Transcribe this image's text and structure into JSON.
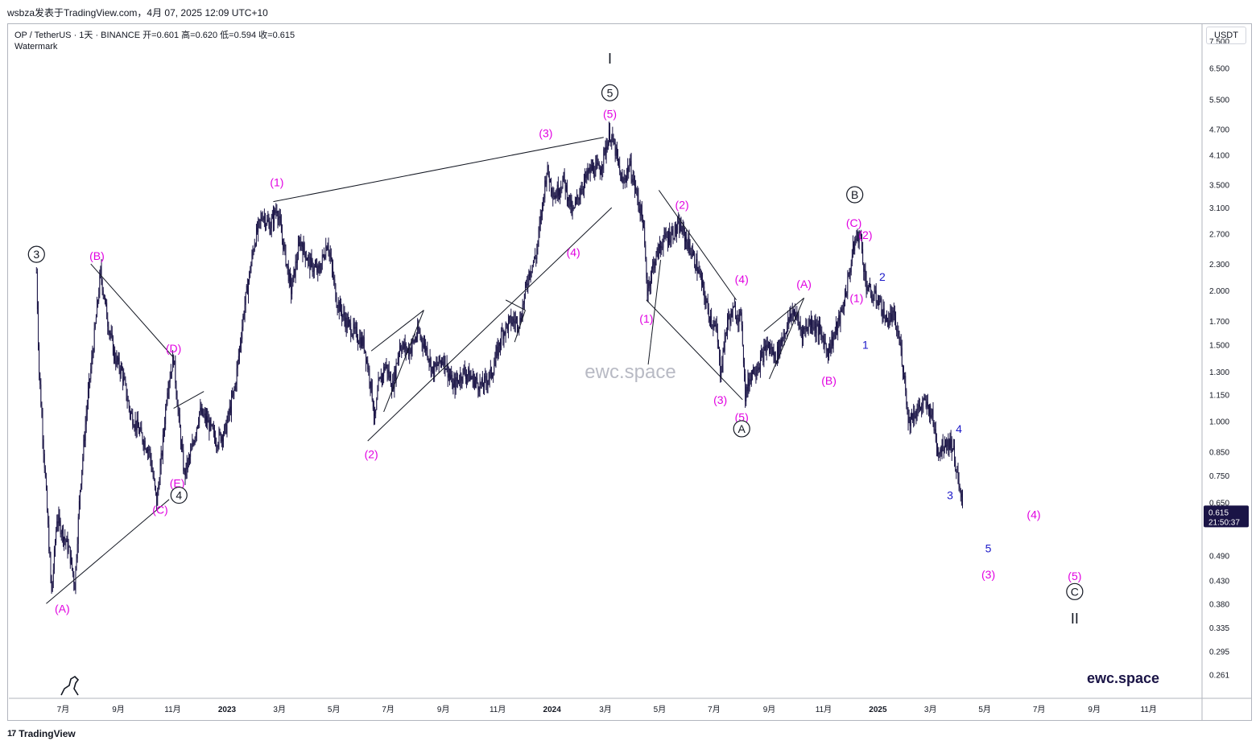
{
  "header": {
    "published": "wsbza发表于TradingView.com，4月 07, 2025 12:09 UTC+10",
    "symbol_line": "OP / TetherUS · 1天 · BINANCE  开=0.601  高=0.620  低=0.594  收=0.615",
    "watermark_label": "Watermark"
  },
  "price_axis": {
    "unit": "USDT",
    "current_price": "0.615",
    "countdown": "21:50:37",
    "current_color": "#1a1446"
  },
  "brand": {
    "center_watermark": "ewc.space",
    "corner_watermark": "ewc.space",
    "footer": "TradingView",
    "corner_color": "#1a1446"
  },
  "colors": {
    "candles": "#1a1446",
    "magenta": "#e100e1",
    "blue": "#1c19c8",
    "lines": "#131722"
  },
  "chart_data": {
    "type": "candlestick",
    "yscale": "log",
    "xlim": [
      "2022-05-01",
      "2025-12-31"
    ],
    "ylim": [
      0.23,
      8.2
    ],
    "y_ticks": [
      "7.500",
      "6.500",
      "5.500",
      "4.700",
      "4.100",
      "3.500",
      "3.100",
      "2.700",
      "2.300",
      "2.000",
      "1.700",
      "1.500",
      "1.300",
      "1.150",
      "1.000",
      "0.850",
      "0.750",
      "0.650",
      "0.490",
      "0.430",
      "0.380",
      "0.335",
      "0.295",
      "0.261"
    ],
    "x_ticks": [
      {
        "d": "2022-07-01",
        "l": "7月"
      },
      {
        "d": "2022-09-01",
        "l": "9月"
      },
      {
        "d": "2022-11-01",
        "l": "11月"
      },
      {
        "d": "2023-01-01",
        "l": "2023",
        "bold": true
      },
      {
        "d": "2023-03-01",
        "l": "3月"
      },
      {
        "d": "2023-05-01",
        "l": "5月"
      },
      {
        "d": "2023-07-01",
        "l": "7月"
      },
      {
        "d": "2023-09-01",
        "l": "9月"
      },
      {
        "d": "2023-11-01",
        "l": "11月"
      },
      {
        "d": "2024-01-01",
        "l": "2024",
        "bold": true
      },
      {
        "d": "2024-03-01",
        "l": "3月"
      },
      {
        "d": "2024-05-01",
        "l": "5月"
      },
      {
        "d": "2024-07-01",
        "l": "7月"
      },
      {
        "d": "2024-09-01",
        "l": "9月"
      },
      {
        "d": "2024-11-01",
        "l": "11月"
      },
      {
        "d": "2025-01-01",
        "l": "2025",
        "bold": true
      },
      {
        "d": "2025-03-01",
        "l": "3月"
      },
      {
        "d": "2025-05-01",
        "l": "5月"
      },
      {
        "d": "2025-07-01",
        "l": "7月"
      },
      {
        "d": "2025-09-01",
        "l": "9月"
      },
      {
        "d": "2025-11-01",
        "l": "11月"
      }
    ],
    "price_path": [
      [
        "2022-06-01",
        2.2
      ],
      [
        "2022-06-04",
        1.3
      ],
      [
        "2022-06-10",
        0.8
      ],
      [
        "2022-06-18",
        0.4
      ],
      [
        "2022-06-24",
        0.6
      ],
      [
        "2022-07-01",
        0.55
      ],
      [
        "2022-07-08",
        0.5
      ],
      [
        "2022-07-14",
        0.42
      ],
      [
        "2022-07-20",
        0.7
      ],
      [
        "2022-07-28",
        1.1
      ],
      [
        "2022-08-04",
        1.5
      ],
      [
        "2022-08-12",
        2.2
      ],
      [
        "2022-08-20",
        1.7
      ],
      [
        "2022-08-28",
        1.4
      ],
      [
        "2022-09-05",
        1.3
      ],
      [
        "2022-09-14",
        1.05
      ],
      [
        "2022-09-24",
        0.95
      ],
      [
        "2022-10-06",
        0.85
      ],
      [
        "2022-10-14",
        0.65
      ],
      [
        "2022-10-20",
        0.85
      ],
      [
        "2022-10-26",
        1.2
      ],
      [
        "2022-11-02",
        1.4
      ],
      [
        "2022-11-08",
        1.0
      ],
      [
        "2022-11-14",
        0.75
      ],
      [
        "2022-11-22",
        0.85
      ],
      [
        "2022-12-01",
        1.05
      ],
      [
        "2022-12-10",
        1.0
      ],
      [
        "2022-12-20",
        0.9
      ],
      [
        "2022-12-30",
        0.95
      ],
      [
        "2023-01-10",
        1.2
      ],
      [
        "2023-01-20",
        1.8
      ],
      [
        "2023-02-01",
        2.6
      ],
      [
        "2023-02-10",
        3.0
      ],
      [
        "2023-02-18",
        2.8
      ],
      [
        "2023-02-26",
        3.1
      ],
      [
        "2023-03-06",
        2.5
      ],
      [
        "2023-03-14",
        2.0
      ],
      [
        "2023-03-24",
        2.6
      ],
      [
        "2023-04-04",
        2.3
      ],
      [
        "2023-04-14",
        2.2
      ],
      [
        "2023-04-24",
        2.6
      ],
      [
        "2023-05-04",
        1.9
      ],
      [
        "2023-05-14",
        1.7
      ],
      [
        "2023-05-24",
        1.6
      ],
      [
        "2023-06-04",
        1.5
      ],
      [
        "2023-06-12",
        1.2
      ],
      [
        "2023-06-16",
        1.0
      ],
      [
        "2023-06-20",
        1.2
      ],
      [
        "2023-06-28",
        1.35
      ],
      [
        "2023-07-06",
        1.2
      ],
      [
        "2023-07-14",
        1.5
      ],
      [
        "2023-07-24",
        1.45
      ],
      [
        "2023-08-04",
        1.6
      ],
      [
        "2023-08-14",
        1.45
      ],
      [
        "2023-08-20",
        1.3
      ],
      [
        "2023-09-01",
        1.4
      ],
      [
        "2023-09-12",
        1.2
      ],
      [
        "2023-09-24",
        1.3
      ],
      [
        "2023-10-04",
        1.25
      ],
      [
        "2023-10-14",
        1.2
      ],
      [
        "2023-10-26",
        1.3
      ],
      [
        "2023-11-06",
        1.6
      ],
      [
        "2023-11-16",
        1.7
      ],
      [
        "2023-11-26",
        1.7
      ],
      [
        "2023-12-06",
        2.2
      ],
      [
        "2023-12-14",
        2.4
      ],
      [
        "2023-12-20",
        3.0
      ],
      [
        "2023-12-26",
        3.8
      ],
      [
        "2024-01-04",
        3.3
      ],
      [
        "2024-01-14",
        3.6
      ],
      [
        "2024-01-24",
        3.0
      ],
      [
        "2024-02-04",
        3.5
      ],
      [
        "2024-02-14",
        3.8
      ],
      [
        "2024-02-24",
        3.8
      ],
      [
        "2024-03-02",
        4.3
      ],
      [
        "2024-03-06",
        4.6
      ],
      [
        "2024-03-12",
        4.2
      ],
      [
        "2024-03-20",
        3.5
      ],
      [
        "2024-03-28",
        3.9
      ],
      [
        "2024-04-04",
        3.4
      ],
      [
        "2024-04-12",
        2.9
      ],
      [
        "2024-04-17",
        2.0
      ],
      [
        "2024-04-24",
        2.3
      ],
      [
        "2024-05-04",
        2.6
      ],
      [
        "2024-05-14",
        2.7
      ],
      [
        "2024-05-24",
        2.8
      ],
      [
        "2024-06-04",
        2.5
      ],
      [
        "2024-06-14",
        2.2
      ],
      [
        "2024-06-24",
        1.8
      ],
      [
        "2024-07-04",
        1.6
      ],
      [
        "2024-07-08",
        1.3
      ],
      [
        "2024-07-16",
        1.7
      ],
      [
        "2024-07-24",
        1.8
      ],
      [
        "2024-08-01",
        1.7
      ],
      [
        "2024-08-05",
        1.15
      ],
      [
        "2024-08-12",
        1.3
      ],
      [
        "2024-08-20",
        1.35
      ],
      [
        "2024-08-30",
        1.5
      ],
      [
        "2024-09-08",
        1.4
      ],
      [
        "2024-09-18",
        1.6
      ],
      [
        "2024-09-28",
        1.8
      ],
      [
        "2024-10-08",
        1.6
      ],
      [
        "2024-10-18",
        1.7
      ],
      [
        "2024-10-28",
        1.6
      ],
      [
        "2024-11-06",
        1.45
      ],
      [
        "2024-11-14",
        1.6
      ],
      [
        "2024-11-22",
        1.8
      ],
      [
        "2024-11-30",
        2.2
      ],
      [
        "2024-12-06",
        2.6
      ],
      [
        "2024-12-12",
        2.7
      ],
      [
        "2024-12-18",
        2.1
      ],
      [
        "2024-12-24",
        1.95
      ],
      [
        "2025-01-02",
        1.9
      ],
      [
        "2025-01-10",
        1.7
      ],
      [
        "2025-01-18",
        1.75
      ],
      [
        "2025-01-26",
        1.5
      ],
      [
        "2025-02-01",
        1.2
      ],
      [
        "2025-02-04",
        1.0
      ],
      [
        "2025-02-12",
        1.05
      ],
      [
        "2025-02-22",
        1.1
      ],
      [
        "2025-03-02",
        1.05
      ],
      [
        "2025-03-10",
        0.85
      ],
      [
        "2025-03-18",
        0.9
      ],
      [
        "2025-03-26",
        0.88
      ],
      [
        "2025-04-01",
        0.72
      ],
      [
        "2025-04-07",
        0.615
      ]
    ],
    "trendlines": [
      {
        "from": [
          "2022-06-12",
          0.38
        ],
        "to": [
          "2022-10-28",
          0.66
        ]
      },
      {
        "from": [
          "2022-08-01",
          2.3
        ],
        "to": [
          "2022-11-02",
          1.4
        ]
      },
      {
        "from": [
          "2022-11-02",
          1.07
        ],
        "to": [
          "2022-12-06",
          1.17
        ]
      },
      {
        "from": [
          "2023-02-22",
          3.2
        ],
        "to": [
          "2024-02-28",
          4.5
        ]
      },
      {
        "from": [
          "2023-06-08",
          0.9
        ],
        "to": [
          "2024-03-08",
          3.1
        ]
      },
      {
        "from": [
          "2023-06-12",
          1.45
        ],
        "to": [
          "2023-08-10",
          1.8
        ]
      },
      {
        "from": [
          "2023-06-26",
          1.05
        ],
        "to": [
          "2023-08-10",
          1.8
        ]
      },
      {
        "from": [
          "2023-11-10",
          1.9
        ],
        "to": [
          "2023-12-02",
          1.8
        ]
      },
      {
        "from": [
          "2023-11-20",
          1.52
        ],
        "to": [
          "2023-12-02",
          1.8
        ]
      },
      {
        "from": [
          "2024-04-16",
          1.9
        ],
        "to": [
          "2024-08-02",
          1.12
        ]
      },
      {
        "from": [
          "2024-04-30",
          3.4
        ],
        "to": [
          "2024-07-26",
          1.9
        ]
      },
      {
        "from": [
          "2024-04-18",
          1.35
        ],
        "to": [
          "2024-05-02",
          2.35
        ]
      },
      {
        "from": [
          "2024-08-26",
          1.61
        ],
        "to": [
          "2024-10-10",
          1.92
        ]
      },
      {
        "from": [
          "2024-09-01",
          1.25
        ],
        "to": [
          "2024-10-10",
          1.92
        ]
      }
    ],
    "wave_labels": [
      {
        "d": "2022-06-30",
        "p": 0.37,
        "t": "(A)",
        "c": "magenta"
      },
      {
        "d": "2022-06-01",
        "p": 2.42,
        "t": "3",
        "c": "black",
        "circle": true
      },
      {
        "d": "2022-08-08",
        "p": 2.4,
        "t": "(B)",
        "c": "magenta"
      },
      {
        "d": "2022-10-18",
        "p": 0.625,
        "t": "(C)",
        "c": "magenta"
      },
      {
        "d": "2022-11-02",
        "p": 1.47,
        "t": "(D)",
        "c": "magenta"
      },
      {
        "d": "2022-11-06",
        "p": 0.72,
        "t": "(E)",
        "c": "magenta"
      },
      {
        "d": "2022-11-08",
        "p": 0.675,
        "t": "4",
        "c": "black",
        "circle": true
      },
      {
        "d": "2023-02-26",
        "p": 3.55,
        "t": "(1)",
        "c": "magenta"
      },
      {
        "d": "2023-06-12",
        "p": 0.84,
        "t": "(2)",
        "c": "magenta"
      },
      {
        "d": "2023-12-25",
        "p": 4.6,
        "t": "(3)",
        "c": "magenta"
      },
      {
        "d": "2024-01-25",
        "p": 2.45,
        "t": "(4)",
        "c": "magenta"
      },
      {
        "d": "2024-03-06",
        "p": 5.1,
        "t": "(5)",
        "c": "magenta"
      },
      {
        "d": "2024-03-06",
        "p": 5.7,
        "t": "5",
        "c": "black",
        "circle": true
      },
      {
        "d": "2024-03-06",
        "p": 6.85,
        "t": "I",
        "c": "black",
        "big": true
      },
      {
        "d": "2024-04-16",
        "p": 1.72,
        "t": "(1)",
        "c": "magenta"
      },
      {
        "d": "2024-05-26",
        "p": 3.15,
        "t": "(2)",
        "c": "magenta"
      },
      {
        "d": "2024-07-08",
        "p": 1.12,
        "t": "(3)",
        "c": "magenta"
      },
      {
        "d": "2024-08-01",
        "p": 2.12,
        "t": "(4)",
        "c": "magenta"
      },
      {
        "d": "2024-08-01",
        "p": 1.02,
        "t": "(5)",
        "c": "magenta"
      },
      {
        "d": "2024-08-01",
        "p": 0.96,
        "t": "A",
        "c": "black",
        "circle": true
      },
      {
        "d": "2024-10-10",
        "p": 2.07,
        "t": "(A)",
        "c": "magenta"
      },
      {
        "d": "2024-11-07",
        "p": 1.24,
        "t": "(B)",
        "c": "magenta"
      },
      {
        "d": "2024-12-05",
        "p": 2.86,
        "t": "(C)",
        "c": "magenta"
      },
      {
        "d": "2024-12-06",
        "p": 3.32,
        "t": "B",
        "c": "black",
        "circle": true
      },
      {
        "d": "2024-12-18",
        "p": 2.68,
        "t": "(2)",
        "c": "magenta"
      },
      {
        "d": "2024-12-08",
        "p": 1.92,
        "t": "(1)",
        "c": "magenta"
      },
      {
        "d": "2024-12-18",
        "p": 1.5,
        "t": "1",
        "c": "blue"
      },
      {
        "d": "2025-01-06",
        "p": 2.15,
        "t": "2",
        "c": "blue"
      },
      {
        "d": "2025-03-23",
        "p": 0.675,
        "t": "3",
        "c": "blue"
      },
      {
        "d": "2025-04-02",
        "p": 0.96,
        "t": "4",
        "c": "blue"
      },
      {
        "d": "2025-05-05",
        "p": 0.51,
        "t": "5",
        "c": "blue"
      },
      {
        "d": "2025-05-05",
        "p": 0.444,
        "t": "(3)",
        "c": "magenta"
      },
      {
        "d": "2025-06-25",
        "p": 0.61,
        "t": "(4)",
        "c": "magenta"
      },
      {
        "d": "2025-08-10",
        "p": 0.44,
        "t": "(5)",
        "c": "magenta"
      },
      {
        "d": "2025-08-10",
        "p": 0.405,
        "t": "C",
        "c": "black",
        "circle": true
      },
      {
        "d": "2025-08-10",
        "p": 0.352,
        "t": "II",
        "c": "black",
        "big": true
      }
    ]
  }
}
